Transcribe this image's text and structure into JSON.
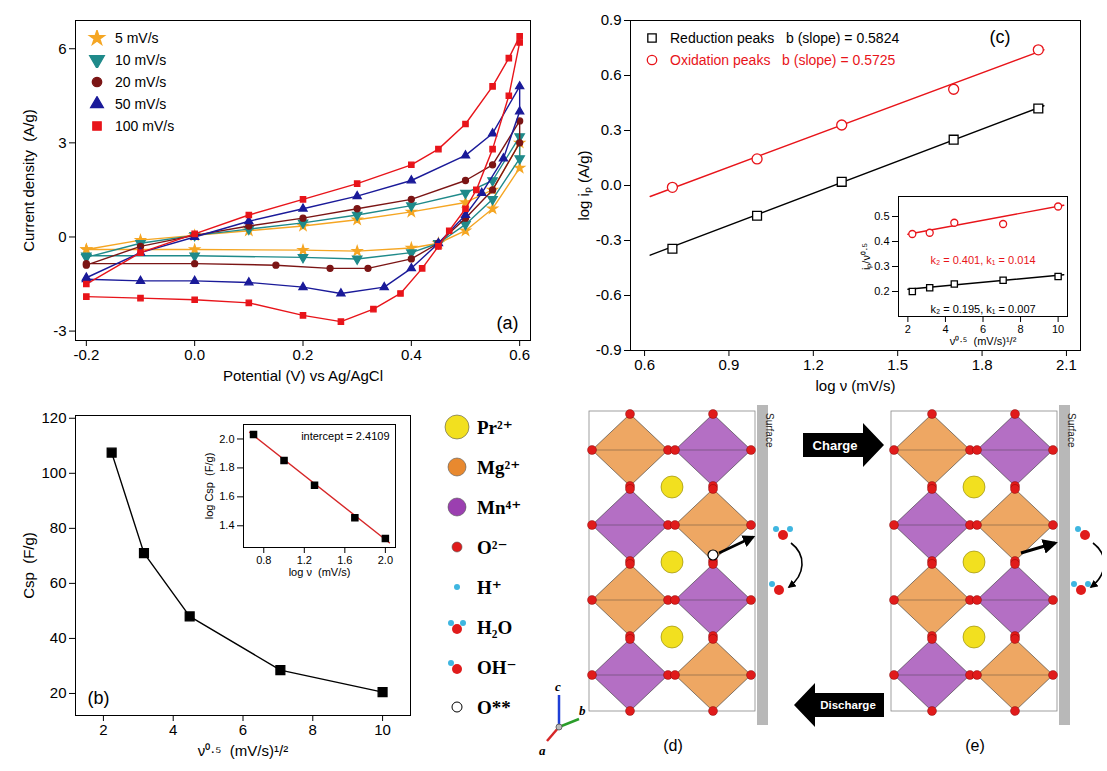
{
  "chart_data": [
    {
      "panel": "(a)",
      "type": "line",
      "x_label": "Potential (V) vs Ag/AgCl",
      "y_label": "Current density  (A/g)",
      "xlim": [
        -0.22,
        0.62
      ],
      "xticks": [
        -0.2,
        {
          "value": 0,
          "label": "0.0"
        },
        0.2,
        0.4,
        0.6
      ],
      "ylim": [
        -3.3,
        6.9
      ],
      "yticks": [
        -3,
        0,
        3,
        6
      ],
      "legend": "top-left",
      "series": [
        {
          "name": "5 mV/s",
          "color": "#f5a623",
          "marker": "star",
          "line_style": "solid",
          "x": [
            -0.2,
            -0.1,
            0,
            0.1,
            0.2,
            0.3,
            0.4,
            0.5,
            0.55,
            0.6,
            0.6,
            0.55,
            0.5,
            0.45,
            0.4,
            0.3,
            0.2,
            0,
            -0.2
          ],
          "values": [
            -0.4,
            -0.1,
            0.05,
            0.2,
            0.35,
            0.55,
            0.8,
            1.1,
            1.5,
            3.0,
            2.2,
            0.9,
            0.2,
            -0.2,
            -0.35,
            -0.45,
            -0.42,
            -0.4,
            -0.4
          ]
        },
        {
          "name": "10 mV/s",
          "color": "#1f8a8a",
          "marker": "triangle-down",
          "line_style": "solid",
          "x": [
            -0.2,
            -0.1,
            0,
            0.1,
            0.2,
            0.3,
            0.4,
            0.5,
            0.55,
            0.6,
            0.6,
            0.55,
            0.5,
            0.45,
            0.4,
            0.3,
            0.2,
            0,
            -0.2
          ],
          "values": [
            -0.65,
            -0.2,
            0.05,
            0.25,
            0.45,
            0.7,
            1.0,
            1.4,
            1.8,
            3.2,
            2.5,
            1.2,
            0.4,
            -0.2,
            -0.5,
            -0.7,
            -0.65,
            -0.6,
            -0.6
          ]
        },
        {
          "name": "20 mV/s",
          "color": "#7b1515",
          "marker": "circle",
          "line_style": "solid",
          "x": [
            -0.2,
            -0.1,
            0,
            0.1,
            0.2,
            0.3,
            0.4,
            0.5,
            0.55,
            0.6,
            0.6,
            0.55,
            0.5,
            0.45,
            0.4,
            0.32,
            0.25,
            0.15,
            0,
            -0.2
          ],
          "values": [
            -0.9,
            -0.3,
            0.05,
            0.35,
            0.6,
            0.9,
            1.2,
            1.8,
            2.3,
            3.7,
            3.0,
            1.5,
            0.6,
            -0.2,
            -0.7,
            -1.0,
            -1.0,
            -0.9,
            -0.85,
            -0.85
          ]
        },
        {
          "name": "50 mV/s",
          "color": "#1a1a99",
          "marker": "triangle",
          "line_style": "solid",
          "x": [
            -0.2,
            -0.1,
            0,
            0.1,
            0.2,
            0.3,
            0.4,
            0.5,
            0.55,
            0.6,
            0.6,
            0.57,
            0.53,
            0.5,
            0.45,
            0.4,
            0.35,
            0.27,
            0.2,
            0.1,
            0,
            -0.1,
            -0.2
          ],
          "values": [
            -1.3,
            -0.5,
            0,
            0.5,
            0.9,
            1.3,
            1.8,
            2.6,
            3.3,
            4.8,
            4.0,
            2.5,
            1.4,
            0.7,
            -0.2,
            -1.0,
            -1.6,
            -1.8,
            -1.6,
            -1.45,
            -1.4,
            -1.4,
            -1.35
          ]
        },
        {
          "name": "100 mV/s",
          "color": "#e8141a",
          "marker": "square",
          "line_style": "solid",
          "x": [
            -0.2,
            -0.1,
            0,
            0.1,
            0.2,
            0.3,
            0.4,
            0.45,
            0.5,
            0.55,
            0.58,
            0.6,
            0.6,
            0.58,
            0.55,
            0.52,
            0.5,
            0.47,
            0.45,
            0.42,
            0.38,
            0.33,
            0.27,
            0.2,
            0.1,
            0,
            -0.1,
            -0.2
          ],
          "values": [
            -1.5,
            -0.5,
            0.1,
            0.7,
            1.2,
            1.7,
            2.3,
            2.8,
            3.6,
            4.8,
            5.7,
            6.4,
            6.2,
            4.5,
            2.8,
            1.5,
            0.9,
            0.2,
            -0.3,
            -1.0,
            -1.8,
            -2.3,
            -2.7,
            -2.5,
            -2.1,
            -2.0,
            -1.95,
            -1.9
          ]
        }
      ]
    },
    {
      "panel": "(b)",
      "type": "line",
      "x_label": "ν⁰·⁵  (mV/s)¹/²",
      "y_label": "Csp  (F/g)",
      "xlim": [
        1.2,
        10.8
      ],
      "xticks": [
        2,
        4,
        6,
        8,
        10
      ],
      "ylim": [
        12,
        121
      ],
      "yticks": [
        20,
        40,
        60,
        80,
        100,
        120
      ],
      "series": [
        {
          "color": "#000000",
          "marker": "square",
          "line_style": "solid",
          "x": [
            2.236,
            3.162,
            4.472,
            7.071,
            10
          ],
          "values": [
            107.5,
            71,
            48,
            28.5,
            20.5
          ]
        }
      ],
      "inset": {
        "type": "scatter",
        "x_label": "log ν  (mV/s)",
        "y_label": "log Csp  (F/g)",
        "xlim": [
          0.6,
          2.1
        ],
        "xticks": [
          0.8,
          1.2,
          1.6,
          {
            "value": 2,
            "label": "2.0"
          }
        ],
        "ylim": [
          1.25,
          2.1
        ],
        "yticks": [
          1.4,
          1.6,
          1.8,
          {
            "value": 2,
            "label": "2.0"
          }
        ],
        "annotation": "intercept = 2.4109",
        "series": [
          {
            "color": "#000000",
            "marker": "square",
            "x": [
              0.699,
              1.0,
              1.301,
              1.699,
              2.0
            ],
            "values": [
              2.031,
              1.851,
              1.681,
              1.455,
              1.312
            ],
            "fit_line": {
              "x": [
                0.66,
                2.04
              ],
              "values": [
                2.046,
                1.283
              ],
              "color": "#d62728",
              "line_style": "solid"
            }
          }
        ]
      }
    },
    {
      "panel": "(c)",
      "type": "scatter",
      "x_label": "log ν (mV/s)",
      "y_label": "log iₚ (A/g)",
      "xlim": [
        0.55,
        2.15
      ],
      "xticks": [
        0.6,
        0.9,
        1.2,
        1.5,
        1.8,
        2.1
      ],
      "ylim": [
        -0.9,
        0.9
      ],
      "yticks": [
        -0.9,
        -0.6,
        -0.3,
        {
          "value": 0,
          "label": "0.0"
        },
        0.3,
        0.6,
        0.9
      ],
      "legend": "top-left",
      "series": [
        {
          "name": "Reduction peaks",
          "annotation": "b (slope) = 0.5824",
          "color": "#000000",
          "marker": "square-open",
          "x": [
            0.699,
            1.0,
            1.301,
            1.699,
            2.0
          ],
          "values": [
            -0.345,
            -0.165,
            0.02,
            0.25,
            0.42
          ],
          "fit_line": {
            "x": [
              0.62,
              2.02
            ],
            "values": [
              -0.38,
              0.435
            ],
            "color": "#000000",
            "line_style": "solid"
          }
        },
        {
          "name": "Oxidation peaks",
          "annotation": "b (slope) = 0.5725",
          "color": "#e8141a",
          "marker": "circle-open",
          "x": [
            0.699,
            1.0,
            1.301,
            1.699,
            2.0
          ],
          "values": [
            -0.01,
            0.145,
            0.33,
            0.525,
            0.74
          ],
          "fit_line": {
            "x": [
              0.62,
              2.02
            ],
            "values": [
              -0.06,
              0.74
            ],
            "color": "#e8141a",
            "line_style": "solid"
          }
        }
      ],
      "inset": {
        "type": "scatter",
        "x_label": "ν⁰·⁵  (mV/s)¹/²",
        "y_label": "iₚ/ν⁰·⁵",
        "xlim": [
          1.5,
          10.5
        ],
        "xticks": [
          2,
          4,
          6,
          8,
          10
        ],
        "ylim": [
          0.1,
          0.58
        ],
        "yticks": [
          0.2,
          0.3,
          0.4,
          0.5
        ],
        "series": [
          {
            "annotation": "k₂ = 0.195, k₁ = 0.007",
            "color": "#000000",
            "marker": "square-open",
            "x": [
              2.236,
              3.162,
              4.472,
              7.071,
              10
            ],
            "values": [
              0.2,
              0.215,
              0.23,
              0.245,
              0.26
            ],
            "fit_line": {
              "x": [
                2,
                10.3
              ],
              "values": [
                0.209,
                0.267
              ],
              "color": "#000000",
              "line_style": "solid"
            }
          },
          {
            "annotation": "k₂ = 0.401, k₁ = 0.014",
            "color": "#e8141a",
            "marker": "circle-open",
            "x": [
              2.236,
              3.162,
              4.472,
              7.071,
              10
            ],
            "values": [
              0.43,
              0.435,
              0.475,
              0.47,
              0.54
            ],
            "fit_line": {
              "x": [
                2,
                10.3
              ],
              "values": [
                0.429,
                0.545
              ],
              "color": "#e8141a",
              "line_style": "solid"
            }
          }
        ]
      }
    }
  ],
  "diagram": {
    "legend": [
      {
        "label": "Pr²⁺",
        "color": "#f2e01f"
      },
      {
        "label": "Mg²⁺",
        "color": "#e8892f"
      },
      {
        "label": "Mn⁴⁺",
        "color": "#9b3fb0"
      },
      {
        "label": "O²⁻",
        "color": "#e01b1b"
      },
      {
        "label": "H⁺",
        "color": "#3fb6e0"
      },
      {
        "label": "H₂O",
        "color": "#e01b1b"
      },
      {
        "label": "OH⁻",
        "color": "#e01b1b"
      },
      {
        "label": "O**",
        "color": "#ffffff"
      }
    ],
    "charge": "Charge",
    "discharge": "Discharge",
    "surface": "Surface",
    "panels": [
      "(d)",
      "(e)"
    ],
    "axes": [
      "c",
      "b",
      "a"
    ]
  }
}
